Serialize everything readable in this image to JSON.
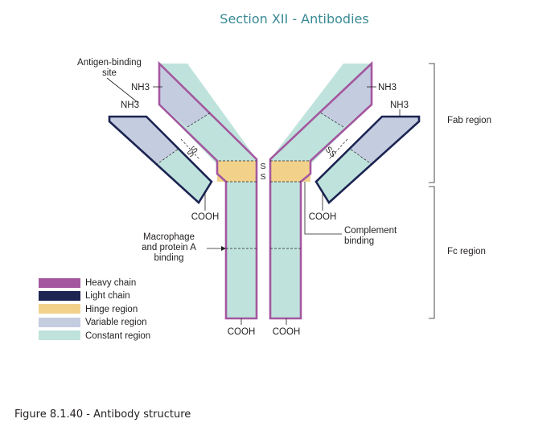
{
  "header": {
    "title": "Section XII - Antibodies"
  },
  "labels": {
    "antigen_site_line1": "Antigen-binding",
    "antigen_site_line2": "site",
    "nh3": "NH3",
    "ss": "SS",
    "s": "S",
    "cooh": "COOH",
    "macrophage_line1": "Macrophage",
    "macrophage_line2": "and protein A",
    "macrophage_line3": "binding",
    "complement_line1": "Complement",
    "complement_line2": "binding",
    "fab_region": "Fab region",
    "fc_region": "Fc region"
  },
  "legend": [
    {
      "label": "Heavy chain",
      "color": "#a4579f"
    },
    {
      "label": "Light chain",
      "color": "#1c2452"
    },
    {
      "label": "Hinge region",
      "color": "#f2d28b"
    },
    {
      "label": "Variable region",
      "color": "#c4cce0"
    },
    {
      "label": "Constant region",
      "color": "#bfe3dc"
    }
  ],
  "colors": {
    "heavy_outline": "#a4579f",
    "light_outline": "#1c2452",
    "hinge": "#f2d28b",
    "variable": "#c4cce0",
    "constant": "#bfe3dc"
  },
  "caption": "Figure 8.1.40 - Antibody structure"
}
